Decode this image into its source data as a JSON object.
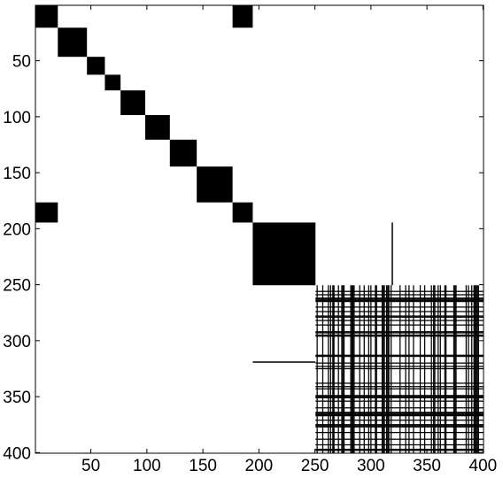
{
  "chart_data": {
    "type": "heatmap",
    "title": "",
    "xlabel": "",
    "ylabel": "",
    "xlim": [
      1,
      400
    ],
    "ylim": [
      1,
      400
    ],
    "y_direction": "reversed",
    "grid": false,
    "colors": {
      "filled": "#000000",
      "empty": "#ffffff"
    },
    "x_ticks": [
      {
        "value": 50,
        "label": "50"
      },
      {
        "value": 100,
        "label": "100"
      },
      {
        "value": 150,
        "label": "150"
      },
      {
        "value": 200,
        "label": "200"
      },
      {
        "value": 250,
        "label": "250"
      },
      {
        "value": 300,
        "label": "300"
      },
      {
        "value": 350,
        "label": "350"
      },
      {
        "value": 400,
        "label": "400"
      }
    ],
    "y_ticks": [
      {
        "value": 50,
        "label": "50"
      },
      {
        "value": 100,
        "label": "100"
      },
      {
        "value": 150,
        "label": "150"
      },
      {
        "value": 200,
        "label": "200"
      },
      {
        "value": 250,
        "label": "250"
      },
      {
        "value": 300,
        "label": "300"
      },
      {
        "value": 350,
        "label": "350"
      },
      {
        "value": 400,
        "label": "400"
      }
    ],
    "blocks": [
      {
        "name": "block-1",
        "x": [
          1,
          20
        ],
        "y": [
          1,
          20
        ]
      },
      {
        "name": "block-2",
        "x": [
          21,
          46
        ],
        "y": [
          21,
          46
        ]
      },
      {
        "name": "block-3",
        "x": [
          47,
          62
        ],
        "y": [
          47,
          62
        ]
      },
      {
        "name": "block-4",
        "x": [
          63,
          76
        ],
        "y": [
          63,
          76
        ]
      },
      {
        "name": "block-5",
        "x": [
          77,
          98
        ],
        "y": [
          77,
          98
        ]
      },
      {
        "name": "block-6",
        "x": [
          99,
          120
        ],
        "y": [
          99,
          120
        ]
      },
      {
        "name": "block-7",
        "x": [
          121,
          144
        ],
        "y": [
          121,
          144
        ]
      },
      {
        "name": "block-8",
        "x": [
          145,
          176
        ],
        "y": [
          145,
          176
        ]
      },
      {
        "name": "block-9",
        "x": [
          177,
          194
        ],
        "y": [
          177,
          194
        ]
      },
      {
        "name": "block-10",
        "x": [
          195,
          250
        ],
        "y": [
          195,
          250
        ]
      },
      {
        "name": "offdiag-top",
        "x": [
          177,
          194
        ],
        "y": [
          1,
          20
        ]
      },
      {
        "name": "offdiag-left",
        "x": [
          1,
          20
        ],
        "y": [
          177,
          194
        ]
      }
    ],
    "lines": [
      {
        "name": "vertical-line",
        "x": [
          319,
          319
        ],
        "y": [
          195,
          250
        ]
      },
      {
        "name": "horizontal-line",
        "x": [
          195,
          250
        ],
        "y": [
          319,
          319
        ]
      }
    ],
    "dense_region": {
      "x": [
        251,
        400
      ],
      "y": [
        251,
        400
      ],
      "fill_density": 0.55,
      "gaps_at": [
        319
      ]
    }
  }
}
